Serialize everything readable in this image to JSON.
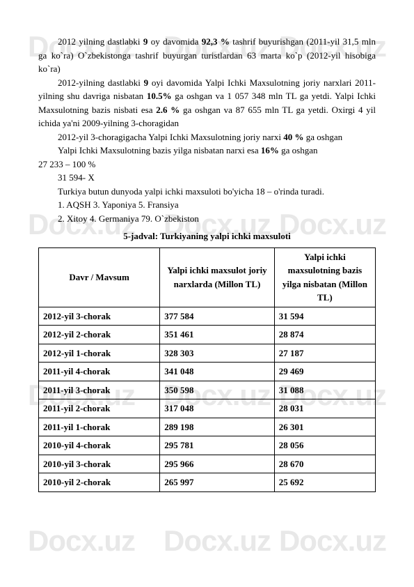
{
  "watermark": "Docx.uz",
  "paragraphs": {
    "p1_a": "2012 yilning dastlabki ",
    "p1_b": "9",
    "p1_c": " oy davomida ",
    "p1_d": "92,3 %",
    "p1_e": " tashrif buyurishgan (2011-yil 31,5 mln ga ko`ra) O`zbekistonga tashrif buyurgan turistlardan 63 marta ko`p (2012-yil hisobiga ko`ra)",
    "p2_a": "2012-yilning dastlabki ",
    "p2_b": "9",
    "p2_c": " oyi davomida Yalpi Ichki Maxsulotning joriy narxlari 2011-yilning shu davriga nisbatan ",
    "p2_d": "10.5%",
    "p2_e": " ga oshgan va 1 057 348 mln TL ga yetdi. Yalpi Ichki Maxsulotning bazis nisbati esa ",
    "p2_f": "2.6 %",
    "p2_g": " ga oshgan va 87 655 mln TL ga yetdi. Oxirgi 4 yil ichida ya'ni 2009-yilning 3-choragidan",
    "p3_a": "2012-yil 3-choragigacha Yalpi Ichki Maxsulotning joriy narxi ",
    "p3_b": "40 %",
    "p3_c": " ga oshgan",
    "p4_a": " Yalpi Ichki Maxsulotning bazis yilga nisbatan narxi esa ",
    "p4_b": "16%",
    "p4_c": " ga oshgan",
    "p5": "27 233 – 100 %",
    "p6": "31 594- X",
    "p7": "Turkiya butun dunyoda yalpi ichki maxsuloti bo'yicha 18 – o'rinda turadi.",
    "p8": "1. AQSH 3. Yaponiya 5. Fransiya",
    "p9": "2. Xitoy 4. Germaniya 79. O`zbekiston"
  },
  "table": {
    "title": "5-jadval: Turkiyaning yalpi ichki maxsuloti",
    "columns": [
      "Davr / Mavsum",
      "Yalpi ichki maxsulot joriy narxlarda (Millon TL)",
      "Yalpi ichki maxsulotning bazis yilga nisbatan (Millon TL)"
    ],
    "col_widths": [
      "36%",
      "34%",
      "30%"
    ],
    "rows": [
      [
        "2012-yil 3-chorak",
        "377 584",
        "31 594"
      ],
      [
        "2012-yil 2-chorak",
        "351 461",
        "28 874"
      ],
      [
        "2012-yil 1-chorak",
        "328 303",
        "27 187"
      ],
      [
        "2011-yil 4-chorak",
        "341 048",
        "29 469"
      ],
      [
        "2011-yil 3-chorak",
        "350 598",
        "31 088"
      ],
      [
        "2011-yil 2-chorak",
        "317 048",
        "28 031"
      ],
      [
        "2011-yil 1-chorak",
        "289 198",
        "26 301"
      ],
      [
        "2010-yil 4-chorak",
        "295 781",
        "28 056"
      ],
      [
        "2010-yil 3-chorak",
        "295 966",
        "28 670"
      ],
      [
        "2010-yil 2-chorak",
        "265 997",
        "25 692"
      ]
    ]
  }
}
